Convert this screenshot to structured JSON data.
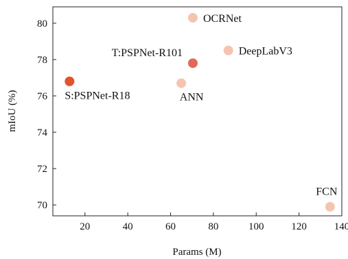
{
  "chart_data": {
    "type": "scatter",
    "title": "",
    "xlabel": "Params (M)",
    "ylabel": "mIoU (%)",
    "xlim": [
      5,
      140
    ],
    "ylim": [
      69.4,
      80.9
    ],
    "x_ticks": [
      20,
      40,
      60,
      80,
      100,
      120,
      140
    ],
    "y_ticks": [
      70,
      72,
      74,
      76,
      78,
      80
    ],
    "grid": false,
    "points": [
      {
        "label": "OCRNet",
        "x": 70.4,
        "y": 80.3,
        "color": "#f5c4b0",
        "label_pos": "right"
      },
      {
        "label": "DeepLabV3",
        "x": 87.0,
        "y": 78.5,
        "color": "#f5c4b0",
        "label_pos": "right"
      },
      {
        "label": "T:PSPNet-R101",
        "x": 70.4,
        "y": 77.8,
        "color": "#e06a58",
        "label_pos": "upper-left"
      },
      {
        "label": "ANN",
        "x": 65.0,
        "y": 76.7,
        "color": "#f5c4b0",
        "label_pos": "below"
      },
      {
        "label": "S:PSPNet-R18",
        "x": 12.8,
        "y": 76.8,
        "color": "#e2542c",
        "label_pos": "below-right"
      },
      {
        "label": "FCN",
        "x": 134.5,
        "y": 69.9,
        "color": "#f5c4b0",
        "label_pos": "above-left"
      }
    ]
  }
}
